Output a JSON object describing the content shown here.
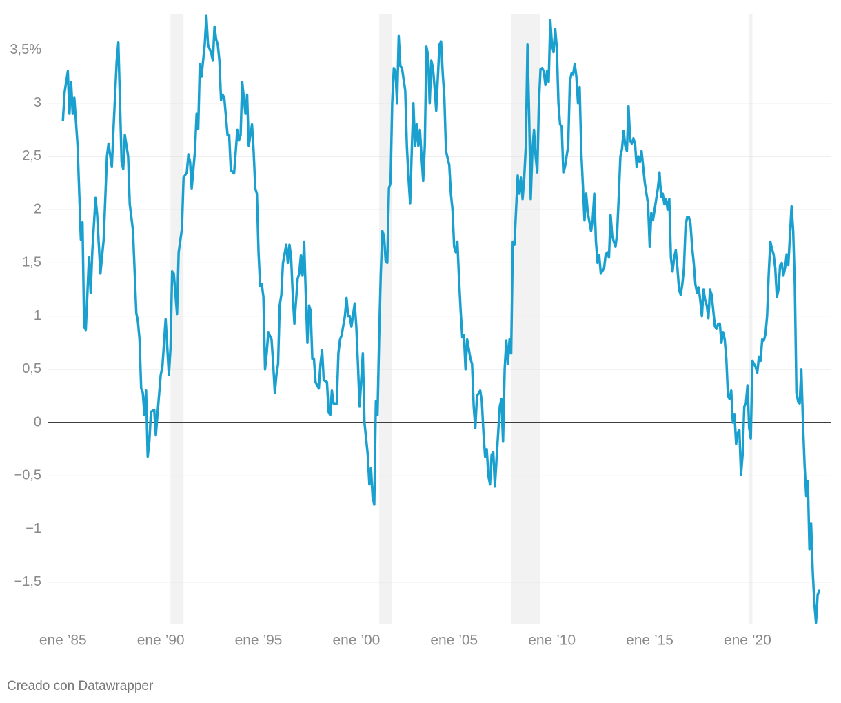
{
  "chart_data": {
    "type": "line",
    "source": "Creado con Datawrapper",
    "color": "#1aa0cf",
    "shade_color": "#f2f2f2",
    "grid": true,
    "shaded_ranges": [
      [
        "1990-07",
        "1991-03"
      ],
      [
        "2001-03",
        "2001-11"
      ],
      [
        "2007-12",
        "2009-06"
      ],
      [
        "2020-02",
        "2020-04"
      ]
    ],
    "xlim": [
      "1984-04",
      "2024-04"
    ],
    "xticks": [
      {
        "value": "1985-01",
        "label": "ene ’85"
      },
      {
        "value": "1990-01",
        "label": "ene ’90"
      },
      {
        "value": "1995-01",
        "label": "ene ’95"
      },
      {
        "value": "2000-01",
        "label": "ene ’00"
      },
      {
        "value": "2005-01",
        "label": "ene ’05"
      },
      {
        "value": "2010-01",
        "label": "ene ’10"
      },
      {
        "value": "2015-01",
        "label": "ene ’15"
      },
      {
        "value": "2020-01",
        "label": "ene ’20"
      }
    ],
    "ylim": [
      -1.89,
      3.84
    ],
    "yticks": [
      {
        "value": 3.5,
        "label": "3,5%"
      },
      3,
      {
        "value": 2.5,
        "label": "2,5"
      },
      2,
      {
        "value": 1.5,
        "label": "1,5"
      },
      1,
      {
        "value": 0.5,
        "label": "0,5"
      },
      0,
      {
        "value": -0.5,
        "label": "−0,5"
      },
      {
        "value": -1,
        "label": "−1"
      },
      {
        "value": -1.5,
        "label": "−1,5"
      }
    ],
    "x": [
      "1985-01",
      "1985-02",
      "1985-04",
      "1985-05",
      "1985-06",
      "1985-07",
      "1985-08",
      "1985-10",
      "1985-12",
      "1986-01",
      "1986-02",
      "1986-03",
      "1986-05",
      "1986-06",
      "1986-07",
      "1986-09",
      "1986-10",
      "1986-12",
      "1987-02",
      "1987-04",
      "1987-05",
      "1987-07",
      "1987-08",
      "1987-10",
      "1987-11",
      "1988-01",
      "1988-02",
      "1988-03",
      "1988-05",
      "1988-06",
      "1988-08",
      "1988-10",
      "1988-11",
      "1988-12",
      "1989-01",
      "1989-02",
      "1989-03",
      "1989-04",
      "1989-05",
      "1989-06",
      "1989-07",
      "1989-09",
      "1989-10",
      "1989-11",
      "1990-01",
      "1990-02",
      "1990-04",
      "1990-06",
      "1990-07",
      "1990-08",
      "1990-09",
      "1990-11",
      "1990-12",
      "1991-02",
      "1991-03",
      "1991-05",
      "1991-06",
      "1991-07",
      "1991-08",
      "1991-10",
      "1991-11",
      "1991-12",
      "1992-01",
      "1992-02",
      "1992-04",
      "1992-05",
      "1992-06",
      "1992-08",
      "1992-09",
      "1992-10",
      "1992-11",
      "1992-12",
      "1993-01",
      "1993-02",
      "1993-03",
      "1993-04",
      "1993-06",
      "1993-07",
      "1993-08",
      "1993-10",
      "1993-12",
      "1994-01",
      "1994-02",
      "1994-03",
      "1994-04",
      "1994-05",
      "1994-06",
      "1994-07",
      "1994-09",
      "1994-10",
      "1994-11",
      "1994-12",
      "1995-01",
      "1995-02",
      "1995-03",
      "1995-04",
      "1995-05",
      "1995-06",
      "1995-07",
      "1995-09",
      "1995-10",
      "1995-11",
      "1995-12",
      "1996-01",
      "1996-02",
      "1996-03",
      "1996-04",
      "1996-06",
      "1996-07",
      "1996-08",
      "1996-09",
      "1996-10",
      "1996-11",
      "1997-01",
      "1997-02",
      "1997-03",
      "1997-04",
      "1997-05",
      "1997-06",
      "1997-07",
      "1997-08",
      "1997-09",
      "1997-10",
      "1997-11",
      "1997-12",
      "1998-02",
      "1998-03",
      "1998-04",
      "1998-05",
      "1998-07",
      "1998-08",
      "1998-09",
      "1998-10",
      "1998-11",
      "1999-01",
      "1999-02",
      "1999-03",
      "1999-04",
      "1999-06",
      "1999-07",
      "1999-08",
      "1999-09",
      "1999-10",
      "1999-12",
      "2000-01",
      "2000-02",
      "2000-03",
      "2000-04",
      "2000-05",
      "2000-06",
      "2000-08",
      "2000-09",
      "2000-10",
      "2000-11",
      "2000-12",
      "2001-01",
      "2001-02",
      "2001-03",
      "2001-04",
      "2001-05",
      "2001-06",
      "2001-07",
      "2001-08",
      "2001-09",
      "2001-10",
      "2001-11",
      "2001-12",
      "2002-01",
      "2002-02",
      "2002-03",
      "2002-04",
      "2002-05",
      "2002-07",
      "2002-08",
      "2002-09",
      "2002-10",
      "2002-11",
      "2002-12",
      "2003-01",
      "2003-02",
      "2003-03",
      "2003-04",
      "2003-05",
      "2003-06",
      "2003-07",
      "2003-08",
      "2003-09",
      "2003-10",
      "2003-11",
      "2003-12",
      "2004-01",
      "2004-02",
      "2004-04",
      "2004-05",
      "2004-06",
      "2004-07",
      "2004-08",
      "2004-10",
      "2004-11",
      "2004-12",
      "2005-01",
      "2005-02",
      "2005-03",
      "2005-04",
      "2005-05",
      "2005-06",
      "2005-07",
      "2005-08",
      "2005-09",
      "2005-11",
      "2005-12",
      "2006-01",
      "2006-02",
      "2006-03",
      "2006-05",
      "2006-06",
      "2006-07",
      "2006-08",
      "2006-09",
      "2006-10",
      "2006-11",
      "2006-12",
      "2007-01",
      "2007-02",
      "2007-03",
      "2007-05",
      "2007-06",
      "2007-07",
      "2007-08",
      "2007-09",
      "2007-10",
      "2007-11",
      "2007-12",
      "2008-01",
      "2008-02",
      "2008-03",
      "2008-04",
      "2008-05",
      "2008-06",
      "2008-07",
      "2008-08",
      "2008-09",
      "2008-10",
      "2008-11",
      "2008-12",
      "2009-01",
      "2009-02",
      "2009-03",
      "2009-04",
      "2009-05",
      "2009-06",
      "2009-07",
      "2009-08",
      "2009-09",
      "2009-10",
      "2009-11",
      "2009-12",
      "2010-01",
      "2010-02",
      "2010-03",
      "2010-04",
      "2010-05",
      "2010-06",
      "2010-07",
      "2010-08",
      "2010-09",
      "2010-11",
      "2010-12",
      "2011-01",
      "2011-02",
      "2011-03",
      "2011-04",
      "2011-05",
      "2011-06",
      "2011-07",
      "2011-09",
      "2011-10",
      "2011-11",
      "2012-01",
      "2012-02",
      "2012-03",
      "2012-04",
      "2012-05",
      "2012-06",
      "2012-07",
      "2012-09",
      "2012-10",
      "2012-11",
      "2012-12",
      "2013-01",
      "2013-02",
      "2013-04",
      "2013-05",
      "2013-06",
      "2013-07",
      "2013-08",
      "2013-09",
      "2013-10",
      "2013-11",
      "2013-12",
      "2014-01",
      "2014-02",
      "2014-03",
      "2014-04",
      "2014-05",
      "2014-06",
      "2014-07",
      "2014-08",
      "2014-10",
      "2014-11",
      "2014-12",
      "2015-01",
      "2015-02",
      "2015-03",
      "2015-04",
      "2015-05",
      "2015-06",
      "2015-07",
      "2015-08",
      "2015-09",
      "2015-10",
      "2015-11",
      "2015-12",
      "2016-01",
      "2016-02",
      "2016-03",
      "2016-04",
      "2016-05",
      "2016-06",
      "2016-07",
      "2016-08",
      "2016-09",
      "2016-10",
      "2016-11",
      "2016-12",
      "2017-01",
      "2017-02",
      "2017-03",
      "2017-04",
      "2017-05",
      "2017-06",
      "2017-07",
      "2017-08",
      "2017-09",
      "2017-10",
      "2017-11",
      "2017-12",
      "2018-01",
      "2018-02",
      "2018-03",
      "2018-04",
      "2018-05",
      "2018-06",
      "2018-07",
      "2018-08",
      "2018-09",
      "2018-10",
      "2018-11",
      "2018-12",
      "2019-01",
      "2019-02",
      "2019-03",
      "2019-04",
      "2019-05",
      "2019-06",
      "2019-07",
      "2019-08",
      "2019-09",
      "2019-10",
      "2019-11",
      "2019-12",
      "2020-01",
      "2020-02",
      "2020-03",
      "2020-04",
      "2020-05",
      "2020-06",
      "2020-07",
      "2020-08",
      "2020-09",
      "2020-10",
      "2020-11",
      "2020-12",
      "2021-01",
      "2021-02",
      "2021-03",
      "2021-04",
      "2021-05",
      "2021-06",
      "2021-07",
      "2021-08",
      "2021-09",
      "2021-10",
      "2021-11",
      "2021-12",
      "2022-01",
      "2022-02",
      "2022-03",
      "2022-04",
      "2022-05",
      "2022-06",
      "2022-07",
      "2022-08",
      "2022-09",
      "2022-10",
      "2022-11",
      "2022-12",
      "2023-01",
      "2023-02",
      "2023-03",
      "2023-04",
      "2023-05",
      "2023-06",
      "2023-07",
      "2023-08",
      "2023-09"
    ],
    "values": [
      2.84,
      3.1,
      3.3,
      2.9,
      3.2,
      2.9,
      3.05,
      2.6,
      1.72,
      1.88,
      0.9,
      0.87,
      1.55,
      1.22,
      1.6,
      2.11,
      1.95,
      1.4,
      1.72,
      2.5,
      2.62,
      2.4,
      2.75,
      3.4,
      3.57,
      2.45,
      2.38,
      2.7,
      2.5,
      2.05,
      1.8,
      1.03,
      0.95,
      0.78,
      0.32,
      0.28,
      0.07,
      0.3,
      -0.32,
      -0.18,
      0.1,
      0.12,
      -0.12,
      0.08,
      0.45,
      0.52,
      0.97,
      0.45,
      0.7,
      1.42,
      1.4,
      1.02,
      1.6,
      1.82,
      2.3,
      2.35,
      2.52,
      2.45,
      2.2,
      2.55,
      2.9,
      2.76,
      3.37,
      3.25,
      3.55,
      3.82,
      3.55,
      3.47,
      3.4,
      3.72,
      3.6,
      3.55,
      3.4,
      3.03,
      3.08,
      3.05,
      2.7,
      2.7,
      2.37,
      2.34,
      2.75,
      2.65,
      2.7,
      3.2,
      3.05,
      2.9,
      3.08,
      2.6,
      2.8,
      2.55,
      2.2,
      2.15,
      1.6,
      1.28,
      1.3,
      1.18,
      0.5,
      0.65,
      0.85,
      0.78,
      0.55,
      0.28,
      0.45,
      0.55,
      1.1,
      1.2,
      1.5,
      1.67,
      1.5,
      1.67,
      1.55,
      1.2,
      0.93,
      1.35,
      1.4,
      1.57,
      1.38,
      1.7,
      1.2,
      0.75,
      1.1,
      1.05,
      0.6,
      0.6,
      0.38,
      0.32,
      0.55,
      0.68,
      0.4,
      0.38,
      0.1,
      0.07,
      0.3,
      0.18,
      0.18,
      0.65,
      0.78,
      0.82,
      1.0,
      1.17,
      1.0,
      1.0,
      0.9,
      1.12,
      0.9,
      0.55,
      0.15,
      0.4,
      0.65,
      0.0,
      -0.3,
      -0.58,
      -0.43,
      -0.7,
      -0.77,
      0.2,
      0.07,
      0.8,
      1.4,
      1.8,
      1.75,
      1.52,
      1.5,
      2.2,
      2.25,
      3.0,
      3.33,
      3.3,
      3.0,
      3.63,
      3.35,
      3.33,
      3.12,
      2.6,
      2.3,
      2.06,
      2.55,
      3.0,
      2.6,
      2.8,
      2.6,
      2.75,
      2.5,
      2.27,
      2.6,
      3.53,
      3.45,
      3.0,
      3.4,
      3.33,
      3.15,
      2.93,
      3.55,
      3.58,
      3.28,
      3.05,
      2.55,
      2.42,
      2.15,
      2.0,
      1.65,
      1.6,
      1.7,
      1.35,
      1.05,
      0.8,
      0.82,
      0.5,
      0.78,
      0.6,
      0.55,
      0.15,
      -0.05,
      0.25,
      0.3,
      0.2,
      -0.1,
      -0.32,
      -0.25,
      -0.5,
      -0.58,
      -0.3,
      -0.28,
      -0.6,
      -0.35,
      0.15,
      0.22,
      -0.18,
      0.5,
      0.77,
      0.55,
      0.78,
      0.65,
      1.7,
      1.67,
      2.0,
      2.32,
      2.15,
      2.3,
      2.1,
      2.3,
      2.6,
      3.55,
      2.9,
      2.1,
      2.55,
      2.75,
      2.5,
      2.35,
      3.0,
      3.32,
      3.33,
      3.3,
      3.17,
      3.3,
      3.2,
      3.78,
      3.55,
      3.48,
      3.7,
      3.52,
      3.0,
      2.8,
      2.78,
      2.35,
      2.4,
      2.6,
      3.2,
      3.28,
      3.27,
      3.37,
      3.25,
      3.0,
      3.15,
      2.55,
      1.9,
      2.15,
      1.97,
      1.8,
      1.9,
      2.15,
      1.7,
      1.5,
      1.57,
      1.4,
      1.45,
      1.58,
      1.6,
      1.55,
      1.95,
      1.75,
      1.65,
      1.78,
      2.12,
      2.5,
      2.57,
      2.74,
      2.6,
      2.55,
      2.97,
      2.65,
      2.62,
      2.67,
      2.62,
      2.4,
      2.5,
      2.45,
      2.55,
      2.25,
      2.15,
      2.05,
      1.65,
      1.97,
      1.9,
      2.0,
      2.1,
      2.2,
      2.35,
      2.12,
      2.15,
      2.05,
      2.1,
      2.0,
      2.1,
      1.55,
      1.42,
      1.55,
      1.62,
      1.45,
      1.25,
      1.2,
      1.3,
      1.45,
      1.85,
      1.93,
      1.93,
      1.87,
      1.65,
      1.5,
      1.3,
      1.22,
      1.27,
      1.15,
      1.0,
      1.25,
      1.15,
      1.1,
      0.98,
      1.25,
      1.2,
      1.05,
      0.9,
      0.88,
      0.93,
      0.93,
      0.75,
      0.85,
      0.78,
      0.6,
      0.25,
      0.22,
      0.3,
      0.0,
      0.08,
      -0.2,
      -0.1,
      -0.07,
      -0.49,
      -0.3,
      0.15,
      0.18,
      0.35,
      -0.05,
      -0.15,
      0.58,
      0.55,
      0.52,
      0.47,
      0.62,
      0.58,
      0.78,
      0.77,
      0.83,
      1.0,
      1.4,
      1.7,
      1.63,
      1.58,
      1.45,
      1.18,
      1.25,
      1.48,
      1.5,
      1.38,
      1.45,
      1.58,
      1.48,
      1.75,
      2.03,
      1.8,
      1.3,
      0.28,
      0.2,
      0.18,
      0.5,
      0.0,
      -0.4,
      -0.69,
      -0.55,
      -1.19,
      -0.95,
      -1.4,
      -1.7,
      -1.88,
      -1.62,
      -1.58
    ]
  }
}
